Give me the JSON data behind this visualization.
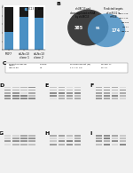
{
  "blue_values": [
    0.42,
    0.78,
    0.75
  ],
  "black_values": [
    0.58,
    0.22,
    0.25
  ],
  "cat_labels": [
    "MCF7",
    "shUbc13\nclone 1",
    "shUbc13\nclone 2"
  ],
  "blue_color": "#4a90c4",
  "black_color": "#1a1a1a",
  "bar_width": 0.6,
  "ylim": [
    0,
    1.05
  ],
  "yticks": [
    0.0,
    0.2,
    0.4,
    0.6,
    0.8,
    1.0
  ],
  "bg_color": "#f0f0f0",
  "panel_bg": "#ffffff",
  "venn_left_color": "#2a2a2a",
  "venn_right_color": "#4a90c4",
  "venn_left_num": "385",
  "venn_overlap_num": "55",
  "venn_right_num": "174"
}
